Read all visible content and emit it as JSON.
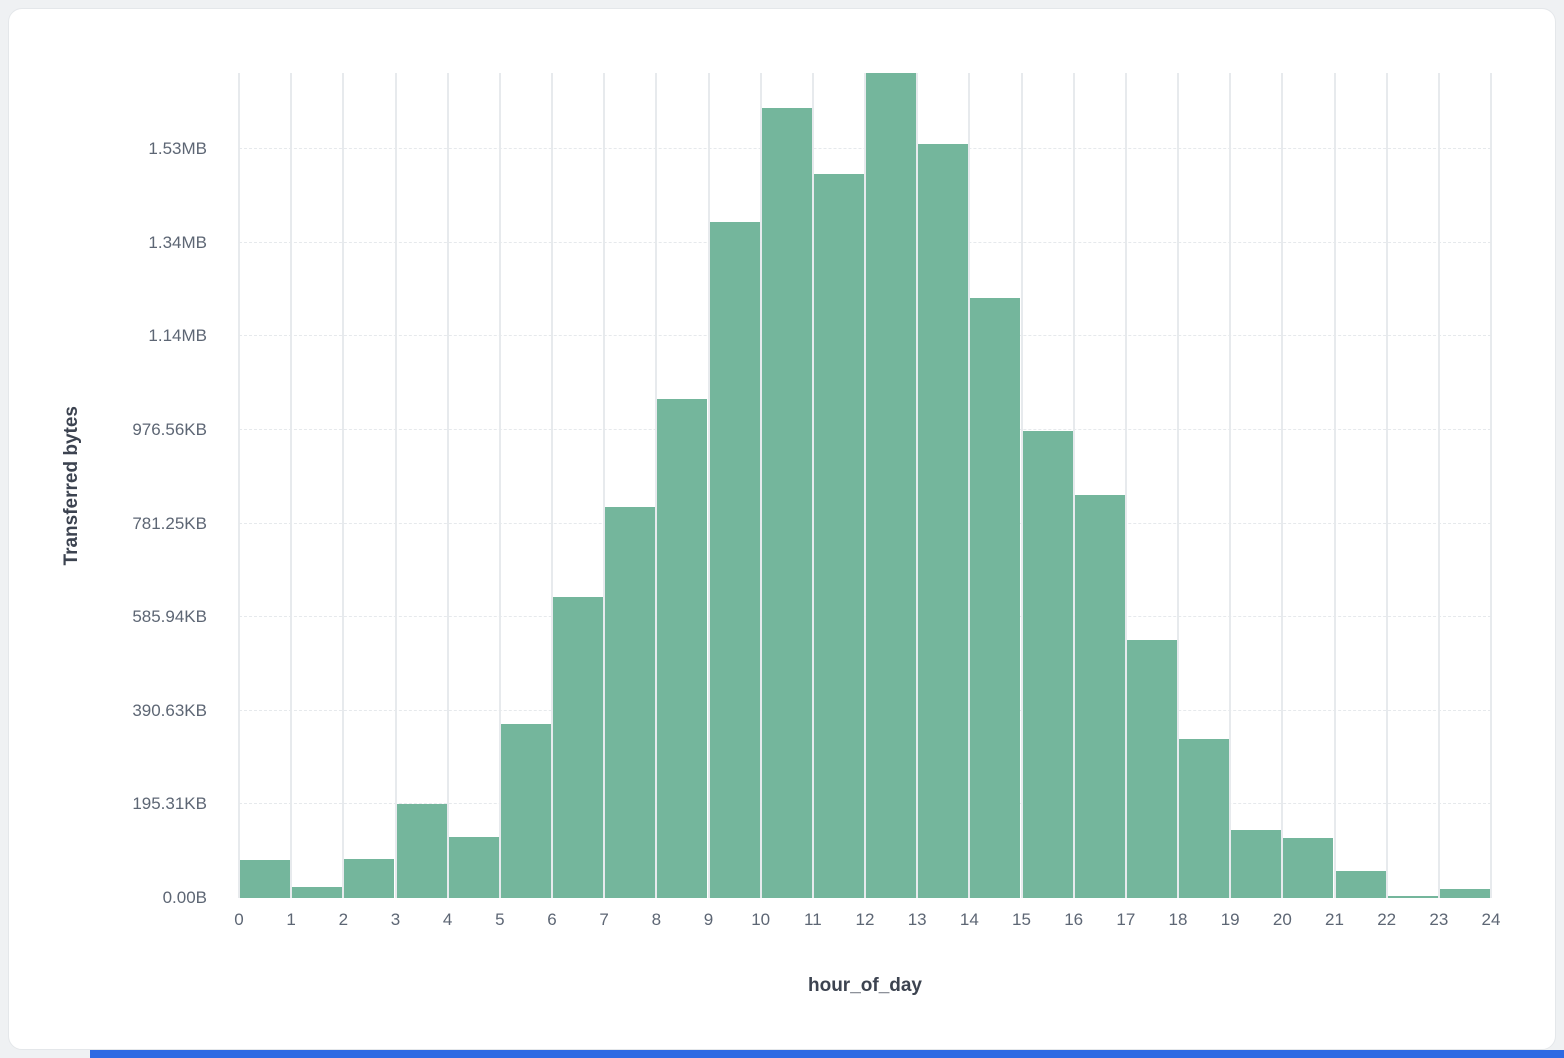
{
  "page": {
    "background_color": "#eff1f3",
    "card_background": "#ffffff",
    "accent_bar_color": "#2d6ae3"
  },
  "chart_data": {
    "type": "bar",
    "title": "",
    "x_axis_title": "hour_of_day",
    "y_axis_title": "Transferred bytes",
    "bar_color": "#74b69c",
    "legend": "none",
    "grid": {
      "vertical": "solid",
      "horizontal": "dashed"
    },
    "xlim": [
      0,
      24
    ],
    "ylim_bytes": [
      0,
      1763000
    ],
    "x_tick_labels": [
      "0",
      "1",
      "2",
      "3",
      "4",
      "5",
      "6",
      "7",
      "8",
      "9",
      "10",
      "11",
      "12",
      "13",
      "14",
      "15",
      "16",
      "17",
      "18",
      "19",
      "20",
      "21",
      "22",
      "23",
      "24"
    ],
    "y_ticks": [
      {
        "value": 0,
        "label": "0.00B"
      },
      {
        "value": 200000,
        "label": "195.31KB"
      },
      {
        "value": 400000,
        "label": "390.63KB"
      },
      {
        "value": 600000,
        "label": "585.94KB"
      },
      {
        "value": 800000,
        "label": "781.25KB"
      },
      {
        "value": 1000000,
        "label": "976.56KB"
      },
      {
        "value": 1200000,
        "label": "1.14MB"
      },
      {
        "value": 1400000,
        "label": "1.34MB"
      },
      {
        "value": 1600000,
        "label": "1.53MB"
      }
    ],
    "hours": [
      0,
      1,
      2,
      3,
      4,
      5,
      6,
      7,
      8,
      9,
      10,
      11,
      12,
      13,
      14,
      15,
      16,
      17,
      18,
      19,
      20,
      21,
      22,
      23
    ],
    "values_bytes": [
      81000,
      24000,
      83000,
      200000,
      130000,
      372000,
      643000,
      836000,
      1066000,
      1444000,
      1688000,
      1547000,
      1763000,
      1611000,
      1282000,
      998000,
      861000,
      551000,
      340000,
      145000,
      128000,
      58000,
      4000,
      19000
    ]
  }
}
